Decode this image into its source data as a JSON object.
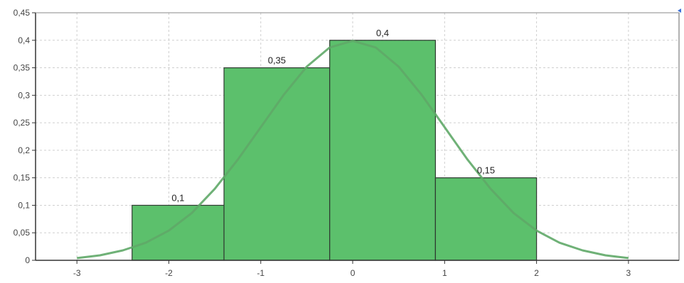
{
  "chart_data": {
    "type": "bar",
    "title": "",
    "xlabel": "",
    "ylabel": "",
    "xlim": [
      -3.45,
      3.55
    ],
    "ylim": [
      0,
      0.45
    ],
    "x_ticks": [
      "-3",
      "-2",
      "-1",
      "0",
      "1",
      "2",
      "3"
    ],
    "x_tick_values": [
      -3,
      -2,
      -1,
      0,
      1,
      2,
      3
    ],
    "y_ticks": [
      "0",
      "0,05",
      "0,1",
      "0,15",
      "0,2",
      "0,25",
      "0,3",
      "0,35",
      "0,4",
      "0,45"
    ],
    "y_tick_values": [
      0,
      0.05,
      0.1,
      0.15,
      0.2,
      0.25,
      0.3,
      0.35,
      0.4,
      0.45
    ],
    "grid": true,
    "bars": [
      {
        "x0": -2.4,
        "x1": -1.4,
        "value": 0.1,
        "label": "0,1"
      },
      {
        "x0": -1.4,
        "x1": -0.25,
        "value": 0.35,
        "label": "0,35"
      },
      {
        "x0": -0.25,
        "x1": 0.9,
        "value": 0.4,
        "label": "0,4"
      },
      {
        "x0": 0.9,
        "x1": 2.0,
        "value": 0.15,
        "label": "0,15"
      }
    ],
    "curve": {
      "type": "line",
      "x": [
        -3.0,
        -2.75,
        -2.5,
        -2.25,
        -2.0,
        -1.75,
        -1.5,
        -1.25,
        -1.0,
        -0.75,
        -0.5,
        -0.25,
        0.0,
        0.25,
        0.5,
        0.75,
        1.0,
        1.25,
        1.5,
        1.75,
        2.0,
        2.25,
        2.5,
        2.75,
        3.0
      ],
      "y": [
        0.004,
        0.009,
        0.018,
        0.032,
        0.054,
        0.086,
        0.13,
        0.183,
        0.242,
        0.301,
        0.352,
        0.387,
        0.399,
        0.387,
        0.352,
        0.301,
        0.242,
        0.183,
        0.13,
        0.086,
        0.054,
        0.032,
        0.018,
        0.009,
        0.004
      ]
    },
    "colors": {
      "bar_fill": "#5cc06c",
      "bar_stroke": "#2f3a31",
      "curve": "#5fa868",
      "axis": "#333333",
      "grid": "#cfcfcf",
      "tick_text": "#444444",
      "label_text": "#222222",
      "marker": "#3b6fd8"
    }
  }
}
